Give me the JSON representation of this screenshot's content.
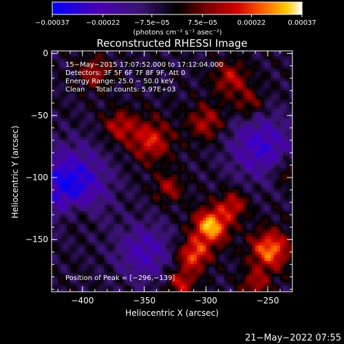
{
  "chart_data": {
    "type": "heatmap",
    "title": "Reconstructed RHESSI Image",
    "xlabel": "Heliocentric X (arcsec)",
    "ylabel": "Heliocentric Y (arcsec)",
    "xlim": [
      -425,
      -230
    ],
    "ylim": [
      -192,
      2
    ],
    "xticks": [
      -400,
      -350,
      -300,
      -250
    ],
    "yticks": [
      0,
      -50,
      -100,
      -150
    ],
    "xtick_labels": [
      "−400",
      "−350",
      "−300",
      "−250"
    ],
    "ytick_labels": [
      "0",
      "−50",
      "−100",
      "−150"
    ],
    "colorbar": {
      "range": [
        -0.00037,
        0.00037
      ],
      "tick_values": [
        -0.00037,
        -0.00022,
        -7.5e-05,
        7.5e-05,
        0.00022,
        0.00037
      ],
      "tick_labels": [
        "−0.00037",
        "−0.00022",
        "−7.5e−05",
        "7.5e−05",
        "0.00022",
        "0.00037"
      ],
      "unit_label": "(photons cm⁻² s⁻¹ asec⁻²)",
      "colors": [
        "#0000ff",
        "#4a00b4",
        "#3a1470",
        "#000000",
        "#7a0000",
        "#d40000",
        "#ff6600",
        "#ffcc00",
        "#ffffff"
      ]
    },
    "annotations": [
      "15−May−2015 17:07:52.000 to 17:12:04.000",
      "Detectors: 3F 5F 6F 7F 8F 9F, Att 0",
      "Energy Range: 25.0 − 50.0 keV",
      "Clean     Total counts: 5.97E+03"
    ],
    "peak_label": "Position of Peak = [−296,−139]",
    "peak": {
      "x": -296,
      "y": -139
    },
    "emission_sources": [
      {
        "x": -296,
        "y": -139,
        "amplitude": 1.0,
        "sigma": 10
      },
      {
        "x": -310,
        "y": -162,
        "amplitude": 0.75,
        "sigma": 9
      },
      {
        "x": -248,
        "y": -158,
        "amplitude": 0.85,
        "sigma": 11
      },
      {
        "x": -278,
        "y": -122,
        "amplitude": 0.55,
        "sigma": 8
      },
      {
        "x": -345,
        "y": -70,
        "amplitude": 0.62,
        "sigma": 12
      },
      {
        "x": -370,
        "y": -58,
        "amplitude": 0.5,
        "sigma": 9
      },
      {
        "x": -300,
        "y": -55,
        "amplitude": 0.5,
        "sigma": 10
      },
      {
        "x": -330,
        "y": -108,
        "amplitude": 0.45,
        "sigma": 8
      },
      {
        "x": -390,
        "y": -15,
        "amplitude": 0.45,
        "sigma": 9
      },
      {
        "x": -280,
        "y": -20,
        "amplitude": 0.5,
        "sigma": 10
      },
      {
        "x": -265,
        "y": -40,
        "amplitude": 0.4,
        "sigma": 8
      },
      {
        "x": -405,
        "y": -130,
        "amplitude": 0.3,
        "sigma": 10
      },
      {
        "x": -320,
        "y": -185,
        "amplitude": 0.55,
        "sigma": 8
      },
      {
        "x": -260,
        "y": -185,
        "amplitude": 0.45,
        "sigma": 8
      },
      {
        "x": -235,
        "y": -95,
        "amplitude": 0.35,
        "sigma": 8
      }
    ],
    "negative_regions": [
      {
        "x": -410,
        "y": -105,
        "amplitude": 0.8,
        "sigma": 20
      },
      {
        "x": -255,
        "y": -75,
        "amplitude": 0.6,
        "sigma": 18
      },
      {
        "x": -350,
        "y": -160,
        "amplitude": 0.5,
        "sigma": 16
      }
    ]
  },
  "timestamp": "21−May−2022 07:55"
}
